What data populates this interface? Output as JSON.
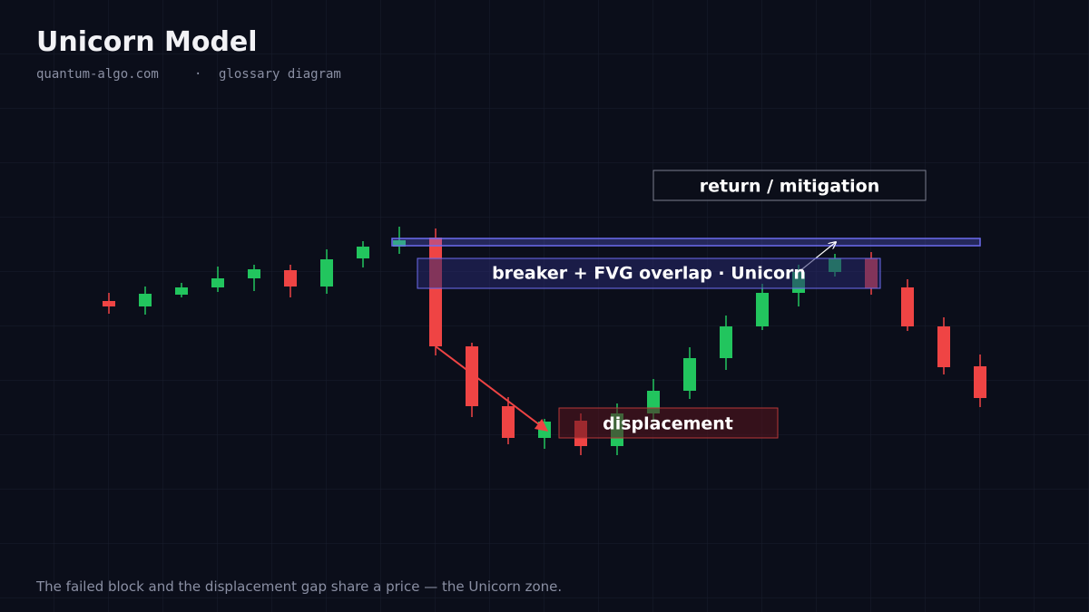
{
  "header": {
    "title": "Unicorn Model",
    "site": "quantum-algo.com",
    "kind": "glossary diagram"
  },
  "labels": {
    "mitigation": "return / mitigation",
    "overlap": "breaker + FVG overlap · Unicorn",
    "displacement": "displacement"
  },
  "caption": "The failed block and the displacement gap share a price — the Unicorn zone."
}
